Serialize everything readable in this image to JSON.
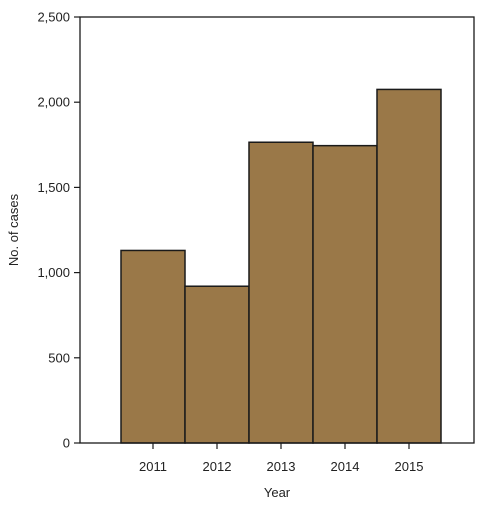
{
  "chart_data": {
    "type": "bar",
    "title": "",
    "xlabel": "Year",
    "ylabel": "No. of cases",
    "categories": [
      "2011",
      "2012",
      "2013",
      "2014",
      "2015"
    ],
    "values": [
      1130,
      920,
      1765,
      1745,
      2075
    ],
    "ylim": [
      0,
      2500
    ],
    "yticks": [
      0,
      500,
      1000,
      1500,
      2000,
      2500
    ],
    "ytick_labels": [
      "0",
      "500",
      "1,000",
      "1,500",
      "2,000",
      "2,500"
    ],
    "grid": false,
    "legend": "none",
    "bar_color": "#9a7848",
    "bar_edge_color": "#1a1a1a"
  }
}
